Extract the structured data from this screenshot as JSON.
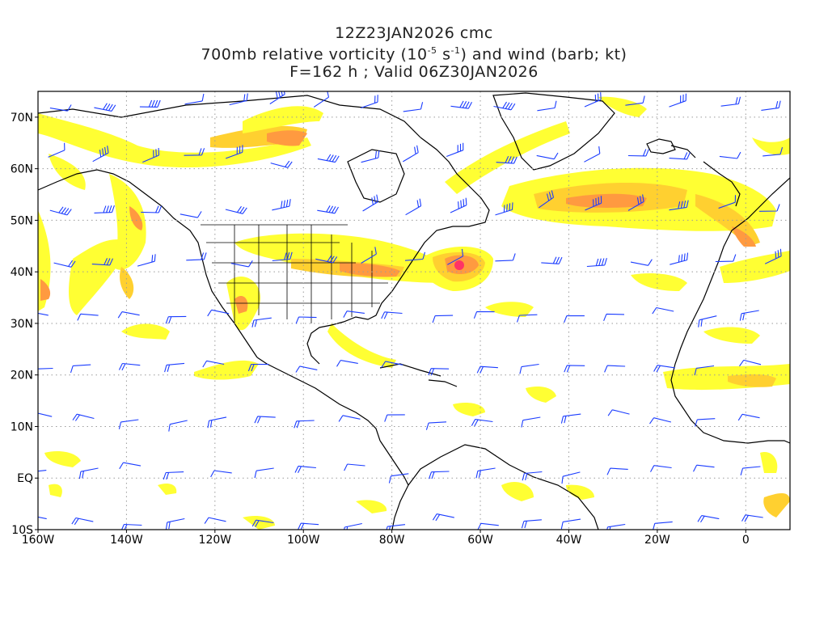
{
  "title": {
    "line1": "12Z23JAN2026 cmc",
    "line2_pre": "700mb relative vorticity (10",
    "line2_sup1": "-5",
    "line2_mid": " s",
    "line2_sup2": "-1",
    "line2_post": ") and wind (barb; kt)",
    "line3": "F=162 h ; Valid 06Z30JAN2026"
  },
  "map": {
    "projection": "cylindrical equidistant",
    "lon_range": [
      -160,
      10
    ],
    "lat_range": [
      -10,
      75
    ],
    "grid": "dotted",
    "lat_labels": [
      "70N",
      "60N",
      "50N",
      "40N",
      "30N",
      "20N",
      "10N",
      "EQ",
      "10S"
    ],
    "lat_values": [
      70,
      60,
      50,
      40,
      30,
      20,
      10,
      0,
      -10
    ],
    "lon_labels": [
      "160W",
      "140W",
      "120W",
      "100W",
      "80W",
      "60W",
      "40W",
      "20W",
      "0"
    ],
    "lon_values": [
      -160,
      -140,
      -120,
      -100,
      -80,
      -60,
      -40,
      -20,
      0
    ],
    "colors": {
      "vorticity_low": "#ffff00",
      "vorticity_mid": "#ffd300",
      "vorticity_high": "#ff9a33",
      "vorticity_max": "#ff3366",
      "barb": "#1a3cff",
      "coast": "#000000",
      "grid": "#9a9a9a"
    }
  }
}
